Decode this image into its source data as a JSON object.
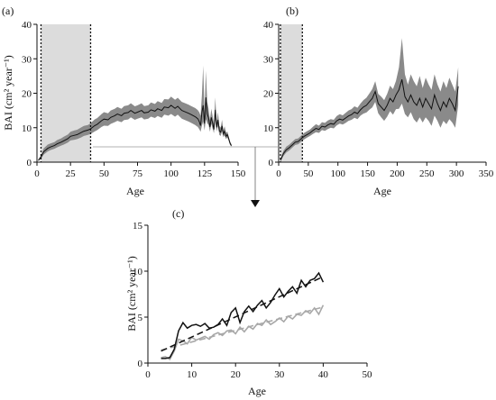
{
  "panels": {
    "a": "(a)",
    "b": "(b)",
    "c": "(c)"
  },
  "colors": {
    "mean_line": "#111111",
    "ci_band": "#8a8a8a",
    "shade": "#dcdcdc",
    "series_light": "#a8a8a8",
    "series_dark": "#111111"
  },
  "chart_data": [
    {
      "panel": "(a)",
      "type": "line",
      "xlabel": "Age",
      "ylabel": "BAI (cm² year⁻¹)",
      "xlim": [
        0,
        150
      ],
      "ylim": [
        0,
        40
      ],
      "xticks": [
        0,
        25,
        50,
        75,
        100,
        125,
        150
      ],
      "yticks": [
        0,
        10,
        20,
        30,
        40
      ],
      "shaded_interval": [
        3,
        40
      ],
      "dotted_lines_x": [
        3,
        40
      ],
      "series": [
        {
          "x": [
            1,
            3,
            5,
            8,
            10,
            13,
            15,
            18,
            20,
            23,
            25,
            28,
            30,
            33,
            35,
            38,
            40,
            43,
            45,
            48,
            50,
            53,
            55,
            58,
            60,
            63,
            65,
            68,
            70,
            73,
            75,
            78,
            80,
            83,
            85,
            88,
            90,
            93,
            95,
            98,
            100,
            103,
            105,
            108,
            110,
            113,
            115,
            118,
            120
          ],
          "y": [
            0.5,
            1.5,
            3,
            4,
            4.4,
            4.8,
            5.3,
            5.8,
            6.2,
            6.8,
            7.5,
            7.8,
            8,
            8.6,
            9,
            9.3,
            9.7,
            10.6,
            11,
            12,
            12.5,
            12.3,
            13,
            13.5,
            14,
            13.5,
            14.2,
            14.4,
            15,
            14.2,
            14.5,
            15,
            14.3,
            14.5,
            15.2,
            14.8,
            15.5,
            15,
            16,
            15.8,
            16.5,
            15.6,
            16.2,
            15,
            14.7,
            14.2,
            13.8,
            13.2,
            12.6
          ],
          "lower": [
            0.3,
            1,
            2.2,
            3.1,
            3.5,
            3.9,
            4.3,
            4.8,
            5.1,
            5.7,
            6.3,
            6.5,
            6.7,
            7.2,
            7.6,
            7.9,
            8.2,
            8.9,
            9.3,
            10.2,
            10.6,
            10.5,
            11.1,
            11.6,
            12,
            11.6,
            12.2,
            12.4,
            13,
            12.3,
            12.6,
            13,
            12.4,
            12.6,
            13.2,
            12.8,
            13.4,
            12.9,
            13.8,
            13.5,
            14,
            13.2,
            13.8,
            12.6,
            12.3,
            11.8,
            11.4,
            10.8,
            10.2
          ],
          "upper": [
            0.8,
            2,
            4,
            5.1,
            5.4,
            5.8,
            6.4,
            6.9,
            7.4,
            8,
            8.8,
            9.2,
            9.4,
            10.1,
            10.5,
            10.8,
            11.3,
            12.4,
            12.8,
            13.9,
            14.5,
            14.2,
            15,
            15.5,
            16,
            15.5,
            16.3,
            16.5,
            17.1,
            16.2,
            16.5,
            17.1,
            16.3,
            16.5,
            17.3,
            16.9,
            17.7,
            17.2,
            18.3,
            18.2,
            19,
            18.1,
            18.7,
            17.5,
            17.2,
            16.7,
            16.3,
            15.7,
            15.1
          ]
        },
        {
          "x": [
            120,
            121,
            122,
            123,
            124,
            125,
            126,
            127,
            128,
            129,
            130,
            131,
            132,
            133,
            134,
            135,
            136,
            137,
            138,
            139,
            140,
            141,
            142,
            143,
            144,
            145
          ],
          "y": [
            12.6,
            11.8,
            10.6,
            14.5,
            16.5,
            11.2,
            18.8,
            14,
            12.8,
            10.2,
            13,
            11.3,
            9.5,
            15.2,
            10.1,
            12.3,
            9.1,
            8.7,
            10.5,
            8.2,
            9,
            7.5,
            8,
            6.8,
            5.5,
            4.8
          ],
          "lower": [
            10.2,
            9.6,
            8.8,
            10.6,
            11.8,
            9.2,
            12.5,
            11.3,
            10.8,
            8.8,
            11.2,
            9.7,
            8.4,
            12.3,
            8.9,
            10.5,
            7.9,
            7.6,
            9,
            7.3,
            7.8,
            6.7,
            7.2,
            6.2,
            5,
            4.5
          ],
          "upper": [
            15.1,
            14.5,
            13.5,
            19.5,
            28,
            14.5,
            26.5,
            17.5,
            15.5,
            12.2,
            15.5,
            13.3,
            11,
            18.8,
            11.6,
            14.5,
            10.5,
            10,
            12.3,
            9.3,
            10.4,
            8.5,
            8.9,
            7.5,
            6,
            5.2
          ]
        }
      ]
    },
    {
      "panel": "(b)",
      "type": "line",
      "xlabel": "Age",
      "ylabel": "",
      "xlim": [
        0,
        350
      ],
      "ylim": [
        0,
        40
      ],
      "xticks": [
        0,
        50,
        100,
        150,
        200,
        250,
        300,
        350
      ],
      "yticks": [
        0,
        10,
        20,
        30,
        40
      ],
      "shaded_interval": [
        3,
        40
      ],
      "dotted_lines_x": [
        3,
        40
      ],
      "series": [
        {
          "x": [
            3,
            8,
            13,
            18,
            23,
            28,
            33,
            38,
            43,
            48,
            53,
            58,
            63,
            68,
            73,
            78,
            83,
            88,
            93,
            98,
            103,
            108,
            113,
            118,
            123,
            128,
            133,
            138,
            143,
            148,
            153,
            158,
            163,
            168,
            173,
            178,
            183,
            188,
            193,
            198,
            203,
            208,
            213,
            218,
            223,
            228,
            233,
            238,
            243,
            248,
            253,
            258,
            263,
            268,
            273,
            278,
            283,
            288,
            293,
            298,
            303
          ],
          "y": [
            0.5,
            2.5,
            3.6,
            4.2,
            5,
            5.8,
            6,
            6.8,
            7.5,
            8,
            8.5,
            9.2,
            9.8,
            9.5,
            10.4,
            10.2,
            10.8,
            11.2,
            11,
            12,
            12.5,
            12.2,
            12.8,
            13.4,
            13.8,
            14.5,
            14.1,
            15.2,
            16,
            16.5,
            17.5,
            18.5,
            20.5,
            17,
            16,
            15,
            16.5,
            18.5,
            17.5,
            19.5,
            21,
            24,
            19,
            17.5,
            19.5,
            17.5,
            16.5,
            18.5,
            16,
            18.5,
            17,
            15.5,
            19.5,
            17,
            15,
            17.5,
            16,
            18.5,
            17,
            15,
            22
          ],
          "lower": [
            0.2,
            1.8,
            2.8,
            3.4,
            4.2,
            5,
            5.2,
            6,
            6.6,
            7.1,
            7.6,
            8.2,
            8.7,
            8.5,
            9.3,
            9.1,
            9.6,
            10,
            9.8,
            10.7,
            11.2,
            10.9,
            11.4,
            12,
            12.3,
            12.9,
            12.5,
            13.5,
            14.1,
            14.4,
            15.2,
            15.9,
            17.5,
            14.2,
            13,
            12,
            13.2,
            14.8,
            13.8,
            15.4,
            15.5,
            17,
            14,
            13,
            14.5,
            12.5,
            11.5,
            13,
            11.5,
            13,
            12,
            10.5,
            13.5,
            12,
            10,
            12,
            11,
            12.5,
            11.5,
            10,
            16.5
          ],
          "upper": [
            0.9,
            3.3,
            4.5,
            5.1,
            5.9,
            6.7,
            6.9,
            7.7,
            8.5,
            9,
            9.5,
            10.3,
            11,
            10.6,
            11.6,
            11.4,
            12.1,
            12.5,
            12.3,
            13.4,
            13.9,
            13.6,
            14.3,
            15,
            15.4,
            16.2,
            15.8,
            17,
            18,
            18.7,
            19.9,
            21.2,
            23.5,
            19.8,
            19,
            18,
            19.8,
            22.2,
            21.2,
            23.6,
            27.5,
            36,
            25.5,
            22.5,
            25.5,
            23.5,
            22,
            25,
            21.5,
            24.5,
            22.5,
            21,
            25.5,
            22.5,
            20.5,
            23.5,
            21.5,
            24.5,
            22.5,
            20.5,
            27.5
          ]
        }
      ]
    },
    {
      "panel": "(c)",
      "type": "line",
      "xlabel": "Age",
      "ylabel": "BAI (cm² year⁻¹)",
      "xlim": [
        0,
        50
      ],
      "ylim": [
        0,
        15
      ],
      "xticks": [
        0,
        10,
        20,
        30,
        40,
        50
      ],
      "yticks": [
        0,
        5,
        10,
        15
      ],
      "series": [
        {
          "style": "dark-solid",
          "x": [
            3,
            4,
            5,
            6,
            7,
            8,
            9,
            10,
            11,
            12,
            13,
            14,
            15,
            16,
            17,
            18,
            19,
            20,
            21,
            22,
            23,
            24,
            25,
            26,
            27,
            28,
            29,
            30,
            31,
            32,
            33,
            34,
            35,
            36,
            37,
            38,
            39,
            40
          ],
          "y": [
            0.5,
            0.5,
            0.6,
            1.5,
            3.5,
            4.4,
            3.8,
            4.1,
            4.2,
            4,
            4.3,
            3.8,
            3.9,
            4.2,
            4.8,
            4.1,
            5.5,
            6,
            4.4,
            5.6,
            6.2,
            5.6,
            6.3,
            6.8,
            6,
            6.6,
            7.4,
            8.1,
            7.2,
            7.8,
            8.3,
            7.6,
            9,
            8.3,
            9,
            9.2,
            9.8,
            8.8
          ]
        },
        {
          "style": "light-solid",
          "x": [
            3,
            4,
            5,
            6,
            7,
            8,
            9,
            10,
            11,
            12,
            13,
            14,
            15,
            16,
            17,
            18,
            19,
            20,
            21,
            22,
            23,
            24,
            25,
            26,
            27,
            28,
            29,
            30,
            31,
            32,
            33,
            34,
            35,
            36,
            37,
            38,
            39,
            40
          ],
          "y": [
            0.6,
            0.7,
            0.4,
            1.3,
            2.6,
            2.4,
            2.1,
            2.8,
            2.5,
            2.7,
            2.9,
            2.6,
            3.1,
            3.3,
            3,
            3.5,
            3.6,
            3.2,
            3.9,
            3.4,
            4,
            3.7,
            4.3,
            4.1,
            4.7,
            4.2,
            4.5,
            4.9,
            4.5,
            5.1,
            4.8,
            5.3,
            5.2,
            5.7,
            5.4,
            6,
            5.3,
            6.3
          ]
        },
        {
          "style": "dark-dashed",
          "x": [
            3,
            40
          ],
          "y": [
            1.3,
            9.4
          ]
        },
        {
          "style": "light-dashed",
          "x": [
            3,
            40
          ],
          "y": [
            1.4,
            6.1
          ]
        }
      ]
    }
  ]
}
